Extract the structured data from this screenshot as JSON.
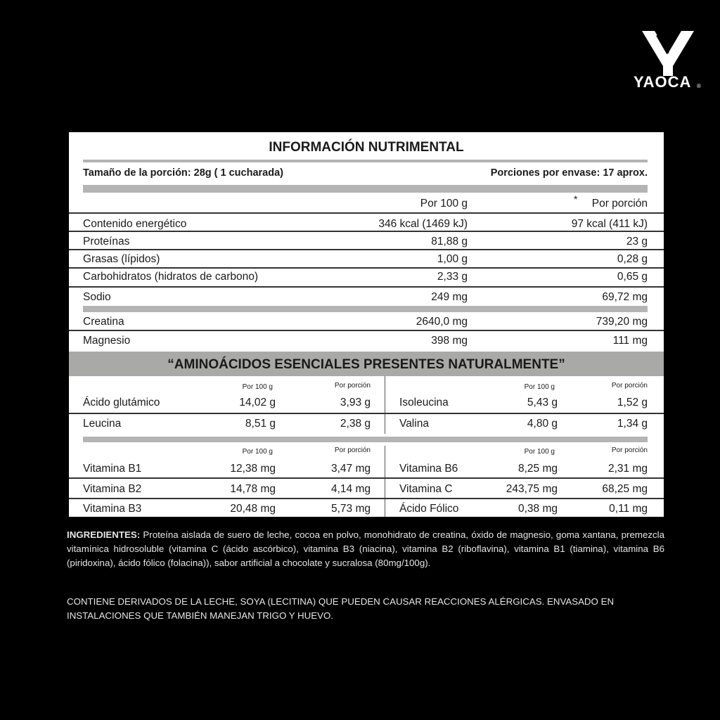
{
  "brand": {
    "logo_text": "YAOCA",
    "registered": "®"
  },
  "label": {
    "title": "INFORMACIÓN NUTRIMENTAL",
    "serving_size": "Tamaño de la porción: 28g ( 1 cucharada)",
    "servings_per_container": "Porciones por envase: 17 aprox.",
    "col_per100": "Por 100 g",
    "col_asterisk": "*",
    "col_perserving": "Por porción",
    "rows": [
      {
        "name": "Contenido energético",
        "per100": "346 kcal (1469 kJ)",
        "perserving": "97 kcal (411 kJ)"
      },
      {
        "name": "Proteínas",
        "per100": "81,88 g",
        "perserving": "23 g"
      },
      {
        "name": "Grasas (lípidos)",
        "per100": "1,00 g",
        "perserving": "0,28 g"
      },
      {
        "name": "Carbohidratos (hidratos de carbono)",
        "per100": "2,33 g",
        "perserving": "0,65 g"
      },
      {
        "name": "Sodio",
        "per100": "249 mg",
        "perserving": "69,72 mg"
      },
      {
        "name": "Creatina",
        "per100": "2640,0 mg",
        "perserving": "739,20 mg"
      },
      {
        "name": "Magnesio",
        "per100": "398 mg",
        "perserving": "111 mg"
      }
    ],
    "amino_title": "“AMINOÁCIDOS ESENCIALES PRESENTES NATURALMENTE”",
    "sub_per100": "Por 100 g",
    "sub_perserving": "Por porción",
    "amino": [
      {
        "name": "Ácido glutámico",
        "per100": "14,02 g",
        "perserving": "3,93 g"
      },
      {
        "name": "Isoleucina",
        "per100": "5,43 g",
        "perserving": "1,52 g"
      },
      {
        "name": "Leucina",
        "per100": "8,51 g",
        "perserving": "2,38 g"
      },
      {
        "name": "Valina",
        "per100": "4,80 g",
        "perserving": "1,34 g"
      }
    ],
    "vitamins": [
      {
        "name": "Vitamina B1",
        "per100": "12,38 mg",
        "perserving": "3,47 mg"
      },
      {
        "name": "Vitamina B6",
        "per100": "8,25 mg",
        "perserving": "2,31 mg"
      },
      {
        "name": "Vitamina B2",
        "per100": "14,78 mg",
        "perserving": "4,14 mg"
      },
      {
        "name": "Vitamina C",
        "per100": "243,75 mg",
        "perserving": "68,25 mg"
      },
      {
        "name": "Vitamina B3",
        "per100": "20,48 mg",
        "perserving": "5,73 mg"
      },
      {
        "name": "Ácido Fólico",
        "per100": "0,38 mg",
        "perserving": "0,11 mg"
      }
    ]
  },
  "ingredients": {
    "heading": "INGREDIENTES:",
    "text": " Proteína aislada de suero de leche, cocoa en polvo, monohidrato de creatina, óxido de magnesio, goma xantana, premezcla vitamínica hidrosoluble (vitamina C (ácido ascórbico), vitamina B3 (niacina), vitamina B2 (riboflavina), vitamina B1 (tiamina), vitamina B6 (piridoxina), ácido fólico (folacina)), sabor artificial a chocolate y sucralosa (80mg/100g).",
    "allergens": "CONTIENE DERIVADOS DE LA LECHE, SOYA (LECITINA) QUE PUEDEN CAUSAR REACCIONES ALÉRGICAS. ENVASADO EN INSTALACIONES QUE TAMBIÉN MANEJAN TRIGO Y HUEVO."
  }
}
